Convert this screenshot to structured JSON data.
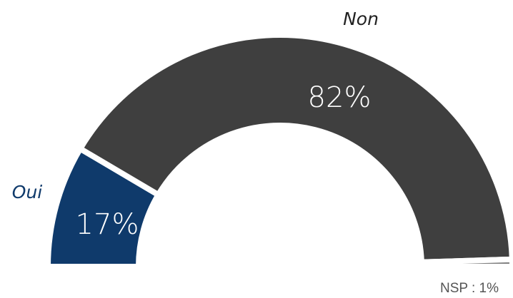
{
  "chart_data": {
    "type": "pie",
    "title": "",
    "layout": "half-donut gauge",
    "slices": [
      {
        "name": "Oui",
        "value": 17,
        "value_label": "17%",
        "color": "#0f3a6b",
        "label_color": "#0f3a6b"
      },
      {
        "name": "Non",
        "value": 82,
        "value_label": "82%",
        "color": "#3f3f3f",
        "label_color": "#222222"
      },
      {
        "name": "NSP",
        "value": 1,
        "value_label": "NSP : 1%",
        "color": "#7f7f7f",
        "label_color": "#555555"
      }
    ]
  }
}
